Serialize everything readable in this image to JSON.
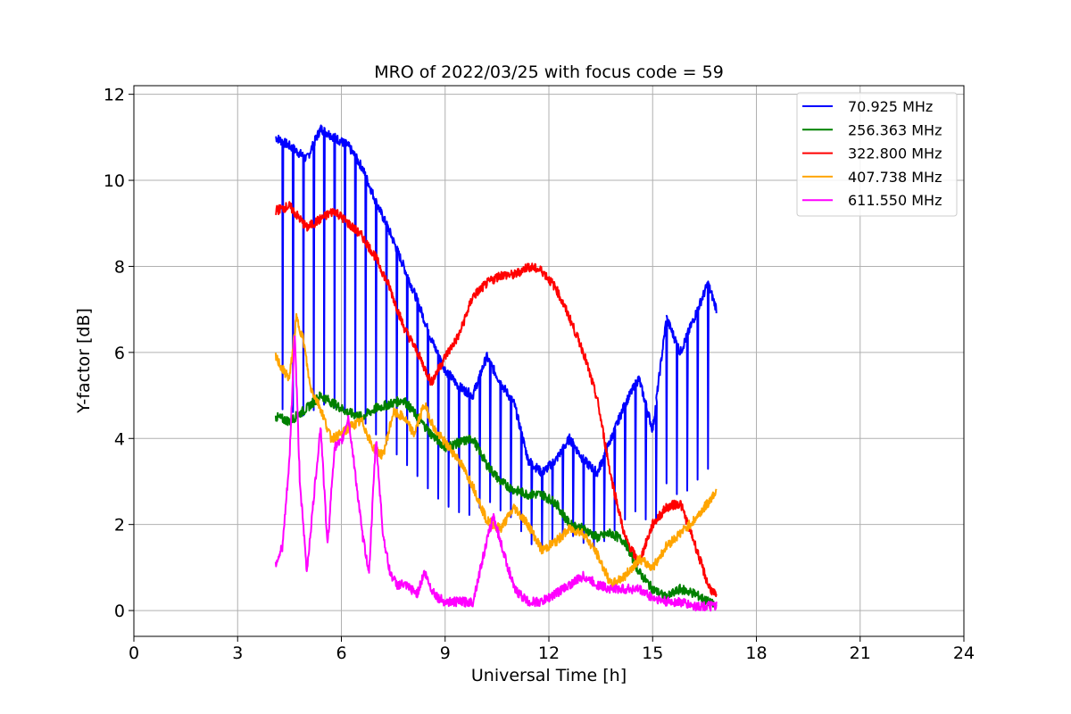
{
  "chart_data": {
    "type": "line",
    "title": "MRO of 2022/03/25 with focus code = 59",
    "xlabel": "Universal Time [h]",
    "ylabel": "Y-factor [dB]",
    "xlim": [
      0,
      24
    ],
    "ylim": [
      -0.6,
      12.2
    ],
    "xticks": [
      0,
      3,
      6,
      9,
      12,
      15,
      18,
      21,
      24
    ],
    "yticks": [
      0,
      2,
      4,
      6,
      8,
      10,
      12
    ],
    "xtick_labels": [
      "0",
      "3",
      "6",
      "9",
      "12",
      "15",
      "18",
      "21",
      "24"
    ],
    "ytick_labels": [
      "0",
      "2",
      "4",
      "6",
      "8",
      "10",
      "12"
    ],
    "grid": true,
    "legend_position": "top-right",
    "series": [
      {
        "name": " 70.925 MHz",
        "color": "#0000ff",
        "x": [
          4.1,
          4.5,
          5.0,
          5.4,
          5.8,
          6.2,
          6.6,
          7.0,
          7.4,
          7.8,
          8.2,
          8.6,
          9.0,
          9.4,
          9.8,
          10.2,
          10.6,
          11.0,
          11.4,
          11.8,
          12.2,
          12.6,
          13.0,
          13.4,
          13.8,
          14.2,
          14.6,
          15.0,
          15.4,
          15.8,
          16.2,
          16.6,
          16.85
        ],
        "y": [
          11.0,
          10.8,
          10.5,
          11.2,
          11.0,
          10.8,
          10.3,
          9.5,
          8.8,
          8.0,
          7.2,
          6.3,
          5.6,
          5.2,
          5.0,
          5.9,
          5.3,
          4.8,
          3.5,
          3.2,
          3.5,
          4.0,
          3.5,
          3.2,
          4.0,
          4.8,
          5.4,
          4.2,
          6.8,
          6.0,
          6.8,
          7.6,
          7.0
        ],
        "dips": [
          4.3,
          4.6,
          4.9,
          5.2,
          5.5,
          5.8,
          6.1,
          6.4,
          6.7,
          7.0,
          7.3,
          7.6,
          7.9,
          8.2,
          8.5,
          8.8,
          9.1,
          9.4,
          9.7,
          10.0,
          10.3,
          10.6,
          10.9,
          11.2,
          11.5,
          11.8,
          12.1,
          12.4,
          12.7,
          13.0,
          13.3,
          13.6,
          13.9,
          14.2,
          14.5,
          14.8,
          15.1,
          15.4,
          15.7,
          16.0,
          16.3,
          16.6
        ]
      },
      {
        "name": "256.363 MHz",
        "color": "#008000",
        "x": [
          4.1,
          4.5,
          5.0,
          5.4,
          5.8,
          6.2,
          6.6,
          7.0,
          7.4,
          7.8,
          8.2,
          8.6,
          9.0,
          9.4,
          9.8,
          10.2,
          10.6,
          11.0,
          11.4,
          11.8,
          12.2,
          12.6,
          13.0,
          13.4,
          13.8,
          14.2,
          14.6,
          15.0,
          15.4,
          15.8,
          16.2,
          16.6,
          16.85
        ],
        "y": [
          4.5,
          4.4,
          4.7,
          5.0,
          4.8,
          4.6,
          4.5,
          4.7,
          4.8,
          4.9,
          4.5,
          4.1,
          3.8,
          3.9,
          4.0,
          3.4,
          3.0,
          2.8,
          2.7,
          2.7,
          2.5,
          2.0,
          1.9,
          1.7,
          1.8,
          1.6,
          0.9,
          0.5,
          0.3,
          0.5,
          0.4,
          0.2,
          0.1
        ]
      },
      {
        "name": "322.800 MHz",
        "color": "#ff0000",
        "x": [
          4.1,
          4.5,
          5.0,
          5.4,
          5.8,
          6.2,
          6.6,
          7.0,
          7.4,
          7.8,
          8.2,
          8.6,
          9.0,
          9.4,
          9.8,
          10.2,
          10.6,
          11.0,
          11.4,
          11.8,
          12.2,
          12.6,
          13.0,
          13.4,
          13.8,
          14.2,
          14.6,
          15.0,
          15.4,
          15.8,
          16.2,
          16.6,
          16.85
        ],
        "y": [
          9.3,
          9.4,
          8.9,
          9.1,
          9.3,
          9.0,
          8.7,
          8.2,
          7.5,
          6.6,
          6.0,
          5.3,
          5.9,
          6.4,
          7.3,
          7.6,
          7.8,
          7.8,
          8.0,
          7.9,
          7.5,
          6.8,
          6.0,
          4.9,
          3.1,
          1.7,
          1.1,
          2.0,
          2.4,
          2.5,
          1.6,
          0.6,
          0.3
        ]
      },
      {
        "name": "407.738 MHz",
        "color": "#ffa500",
        "x": [
          4.1,
          4.3,
          4.5,
          4.7,
          4.9,
          5.1,
          5.4,
          5.7,
          6.0,
          6.3,
          6.6,
          6.9,
          7.2,
          7.5,
          7.8,
          8.1,
          8.4,
          8.7,
          9.0,
          9.4,
          9.8,
          10.2,
          10.6,
          11.0,
          11.4,
          11.8,
          12.2,
          12.6,
          13.0,
          13.4,
          13.8,
          14.2,
          14.6,
          15.0,
          15.4,
          15.8,
          16.2,
          16.6,
          16.85
        ],
        "y": [
          5.9,
          5.6,
          5.4,
          6.8,
          6.3,
          5.2,
          4.7,
          4.0,
          4.1,
          4.3,
          4.4,
          3.8,
          3.6,
          4.6,
          4.5,
          4.1,
          4.8,
          4.2,
          3.9,
          3.5,
          2.9,
          2.1,
          1.9,
          2.4,
          2.0,
          1.4,
          1.6,
          1.9,
          1.8,
          1.3,
          0.6,
          0.8,
          1.2,
          1.0,
          1.5,
          1.8,
          2.1,
          2.5,
          2.8
        ]
      },
      {
        "name": "611.550 MHz",
        "color": "#ff00ff",
        "x": [
          4.1,
          4.3,
          4.5,
          4.65,
          4.8,
          5.0,
          5.2,
          5.4,
          5.6,
          5.8,
          6.0,
          6.2,
          6.4,
          6.6,
          6.8,
          7.0,
          7.2,
          7.4,
          7.6,
          7.8,
          8.0,
          8.2,
          8.4,
          8.6,
          8.8,
          9.0,
          9.4,
          9.8,
          10.2,
          10.4,
          10.6,
          11.0,
          11.4,
          11.8,
          12.2,
          12.6,
          13.0,
          13.4,
          13.8,
          14.2,
          14.6,
          15.0,
          15.4,
          15.8,
          16.2,
          16.6,
          16.85
        ],
        "y": [
          1.1,
          1.5,
          3.5,
          6.5,
          3.0,
          0.9,
          2.6,
          4.3,
          1.5,
          3.8,
          3.9,
          4.5,
          3.2,
          1.8,
          0.9,
          4.0,
          1.8,
          0.9,
          0.6,
          0.6,
          0.5,
          0.4,
          0.9,
          0.5,
          0.3,
          0.2,
          0.2,
          0.2,
          1.6,
          2.2,
          1.6,
          0.5,
          0.2,
          0.2,
          0.4,
          0.6,
          0.8,
          0.6,
          0.5,
          0.5,
          0.5,
          0.3,
          0.2,
          0.2,
          0.1,
          0.1,
          0.1
        ]
      }
    ]
  }
}
